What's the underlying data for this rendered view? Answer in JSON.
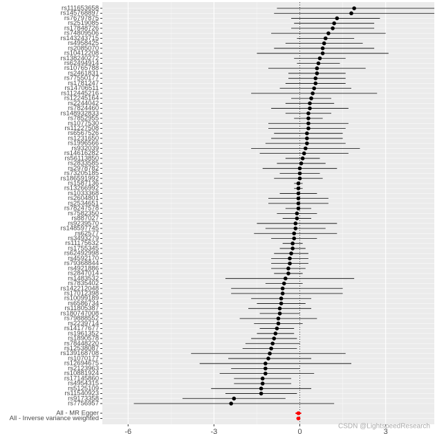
{
  "chart_data": {
    "type": "forest",
    "categories": [
      "rs111653658",
      "rs145768897",
      "rs76797875",
      "rs2519085",
      "rs17848726",
      "rs74809506",
      "rs143243715",
      "rs4958425",
      "rs2085070",
      "rs10412208",
      "rs138240272",
      "rs62494914",
      "rs10765788",
      "rs2461831",
      "rs77550177",
      "rs1781247",
      "rs14706511",
      "rs112445216",
      "rs12245164",
      "rs2244042",
      "rs7824460",
      "rs148932833",
      "rs7852955",
      "rs1077530",
      "rs11227508",
      "rs6567526",
      "rs1231650",
      "rs1996566",
      "rs932039",
      "rs14616282",
      "rs56113850",
      "rs2833585",
      "rs2978782",
      "rs73205185",
      "rs186591992",
      "rs1587136",
      "rs13266992",
      "rs1033368",
      "rs2604801",
      "rs2534651",
      "rs78247578",
      "rs7582350",
      "rs887027",
      "rs9239570",
      "rs148597745",
      "rs62577",
      "rs3493279",
      "rs11175632",
      "rs1755345",
      "rs62492998",
      "rs4592170",
      "rs79368844",
      "rs4921886",
      "rs2847014",
      "rs1483532",
      "rs7835402",
      "rs142212048",
      "rs17012398",
      "rs10099189",
      "rs6586734",
      "rs11805387",
      "rs180747008",
      "rs79888552",
      "rs2239714",
      "rs14177677",
      "rs1961352",
      "rs1890578",
      "rs78448220",
      "rs12538087",
      "rs139168708",
      "rs1070177",
      "rs12694675",
      "rs2123963",
      "rs10881924",
      "rs17145860",
      "rs4954315",
      "rs5125109",
      "rs11540923",
      "rs9173358",
      "rs7756957"
    ],
    "estimates": [
      1.9,
      1.8,
      1.3,
      1.2,
      1.15,
      1.0,
      0.9,
      0.85,
      0.8,
      0.8,
      0.7,
      0.65,
      0.6,
      0.6,
      0.55,
      0.55,
      0.5,
      0.45,
      0.4,
      0.35,
      0.35,
      0.3,
      0.3,
      0.3,
      0.3,
      0.25,
      0.25,
      0.25,
      0.2,
      0.15,
      0.1,
      0.05,
      0.0,
      0.0,
      0.0,
      -0.05,
      -0.05,
      -0.05,
      -0.05,
      -0.05,
      -0.05,
      -0.1,
      -0.1,
      -0.15,
      -0.15,
      -0.2,
      -0.2,
      -0.25,
      -0.25,
      -0.3,
      -0.35,
      -0.35,
      -0.4,
      -0.4,
      -0.5,
      -0.55,
      -0.6,
      -0.6,
      -0.65,
      -0.65,
      -0.7,
      -0.7,
      -0.75,
      -0.75,
      -0.8,
      -0.85,
      -0.9,
      -0.95,
      -1.0,
      -1.05,
      -1.1,
      -1.2,
      -1.2,
      -1.2,
      -1.3,
      -1.3,
      -1.35,
      -1.35,
      -2.3,
      -2.4
    ],
    "lower": [
      -0.8,
      -0.9,
      -0.3,
      -0.2,
      -0.3,
      -1.0,
      -0.1,
      -0.5,
      -0.9,
      -1.5,
      -0.2,
      -0.1,
      -1.1,
      -0.4,
      -0.4,
      -0.5,
      -0.7,
      -1.7,
      -0.3,
      -0.5,
      -1.0,
      -0.5,
      -0.2,
      -1.1,
      -1.1,
      -0.9,
      -1.0,
      -1.2,
      -1.7,
      -1.4,
      -0.5,
      -0.8,
      -1.3,
      -0.7,
      -0.9,
      -0.2,
      -0.2,
      -0.7,
      -1.1,
      -1.1,
      -0.5,
      -0.8,
      -0.6,
      -1.5,
      -1.2,
      -1.6,
      -1.0,
      -0.6,
      -0.7,
      -0.9,
      -1.0,
      -1.0,
      -1.0,
      -0.9,
      -2.6,
      -1.2,
      -2.4,
      -2.4,
      -1.7,
      -1.5,
      -1.8,
      -1.4,
      -2.1,
      -1.6,
      -1.4,
      -1.5,
      -1.7,
      -1.9,
      -2.0,
      -3.8,
      -2.5,
      -3.5,
      -2.4,
      -2.8,
      -2.3,
      -2.3,
      -3.1,
      -2.6,
      -4.1,
      -5.8
    ],
    "upper": [
      4.7,
      4.7,
      2.8,
      2.6,
      2.6,
      3.0,
      1.9,
      2.2,
      2.6,
      3.1,
      1.6,
      1.4,
      2.3,
      1.6,
      1.6,
      1.6,
      1.8,
      2.7,
      1.1,
      1.2,
      1.7,
      1.1,
      0.8,
      1.7,
      1.6,
      1.5,
      1.5,
      1.6,
      2.1,
      1.7,
      0.7,
      0.9,
      1.3,
      0.7,
      0.8,
      0.1,
      0.1,
      0.6,
      1.0,
      1.0,
      0.4,
      0.6,
      0.4,
      1.3,
      0.9,
      1.3,
      0.6,
      0.1,
      0.2,
      0.3,
      0.3,
      0.3,
      0.2,
      0.1,
      1.9,
      0.1,
      1.5,
      1.5,
      0.4,
      0.2,
      0.4,
      0.0,
      0.6,
      0.1,
      -0.2,
      -0.2,
      -0.1,
      0.0,
      -0.1,
      1.6,
      0.4,
      1.8,
      0.0,
      0.5,
      -0.3,
      -0.3,
      0.4,
      -0.1,
      -0.5,
      1.2
    ],
    "color": "#000000",
    "summary": {
      "categories": [
        "All - MR Egger",
        "All - Inverse variance weighted"
      ],
      "estimates": [
        -0.05,
        -0.05
      ],
      "lower": [
        -0.15,
        -0.12
      ],
      "upper": [
        0.05,
        0.02
      ],
      "color": "#ff0000"
    },
    "reference_line": 0,
    "xlim": [
      -6.9,
      4.7
    ],
    "xticks": [
      -6,
      -3,
      0,
      3
    ],
    "grid": true,
    "watermark": "CSDN @LightspeedResearch"
  }
}
